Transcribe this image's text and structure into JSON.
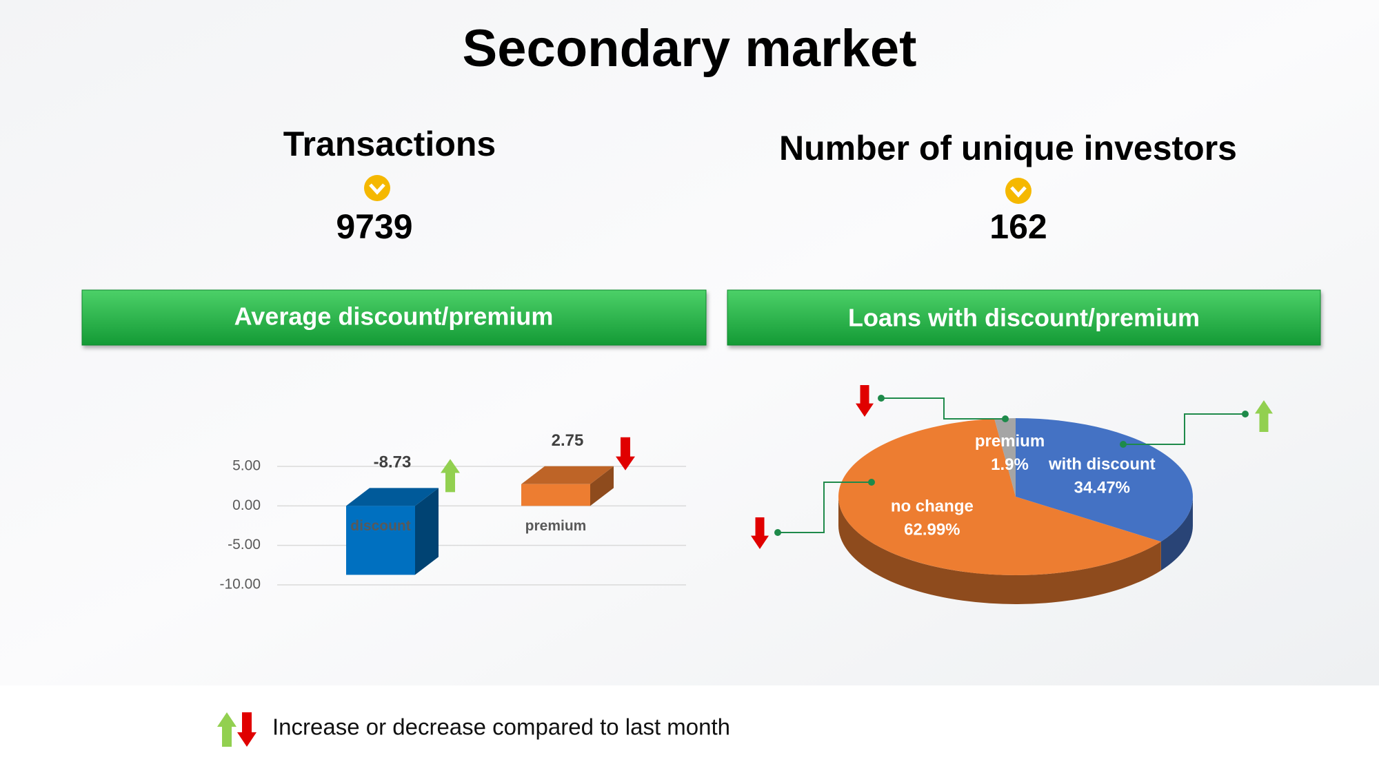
{
  "title": "Secondary market",
  "kpis": [
    {
      "label": "Transactions",
      "value": 9739
    },
    {
      "label": "Number of unique investors",
      "value": 162
    }
  ],
  "legend": {
    "text": "Increase or decrease compared to last month",
    "up_color": "#92d050",
    "down_color": "#e00000"
  },
  "chart_data": [
    {
      "type": "bar",
      "title": "Average discount/premium",
      "categories": [
        "discount",
        "premium"
      ],
      "values": [
        -8.73,
        2.75
      ],
      "colors": [
        "#0070c0",
        "#ed7d31"
      ],
      "ylim": [
        -10,
        5
      ],
      "yticks": [
        {
          "value": -10,
          "label": "-10.00"
        },
        {
          "value": -5,
          "label": "-5.00"
        },
        {
          "value": 0,
          "label": "0.00"
        },
        {
          "value": 5,
          "label": "5.00"
        }
      ],
      "grid": true,
      "trends": [
        "up",
        "down"
      ]
    },
    {
      "type": "pie",
      "title": "Loans with discount/premium",
      "categories": [
        "with discount",
        "no change",
        "premium"
      ],
      "values": [
        34.47,
        62.99,
        1.9
      ],
      "value_labels": [
        "34.47%",
        "62.99%",
        "1.9%"
      ],
      "colors": [
        "#4472c4",
        "#ed7d31",
        "#a5a5a5"
      ],
      "trends": [
        "up",
        "down",
        "down"
      ]
    }
  ]
}
